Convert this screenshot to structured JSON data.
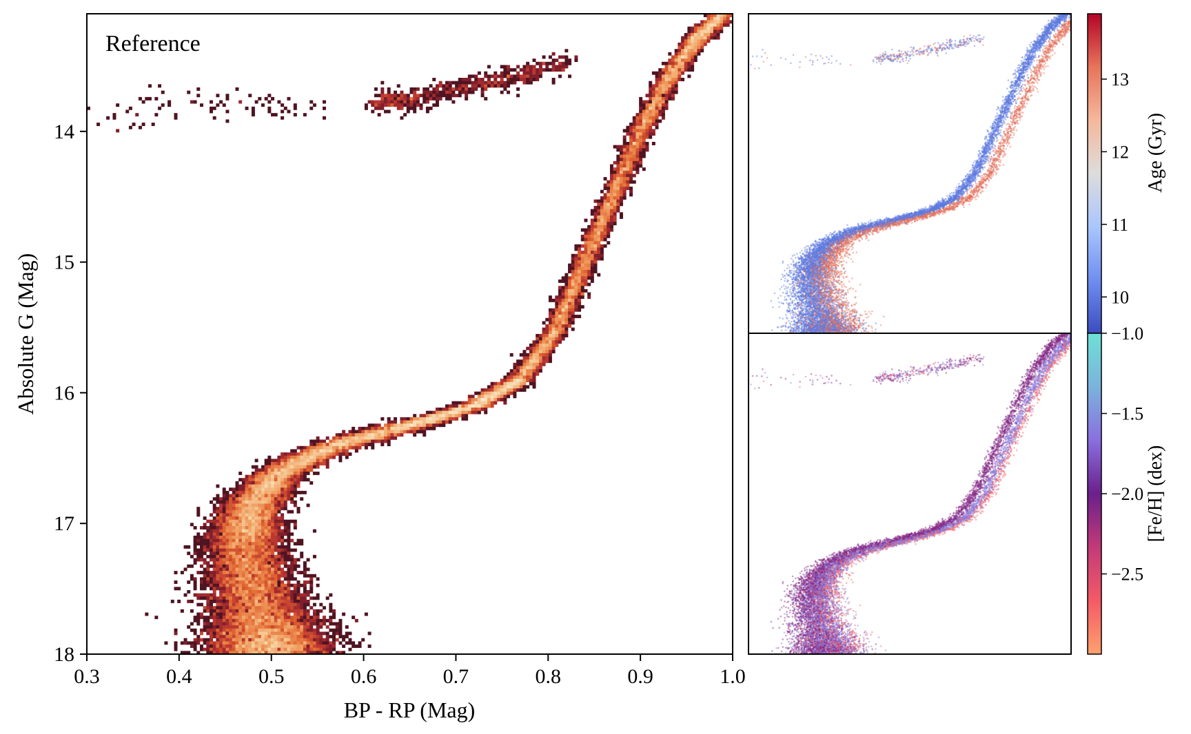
{
  "colors": {
    "cmap_density": [
      "#0d0305",
      "#3b0f1c",
      "#7a1d2a",
      "#b73330",
      "#e0622f",
      "#f1a062",
      "#f6d2a2",
      "#faebd7"
    ],
    "cmap_age": [
      "#3b4cc0",
      "#6f8ff0",
      "#aac6fd",
      "#dddcdc",
      "#f5b89c",
      "#e7745b",
      "#b40426"
    ],
    "cmap_feh": [
      "#fea16e",
      "#f45a66",
      "#c23a78",
      "#6b1f8c",
      "#8a6fe0",
      "#7bb3dc",
      "#6fe0d6"
    ]
  },
  "chart_data": [
    {
      "type": "heatmap",
      "id": "reference",
      "annotation": "Reference",
      "xlabel": "BP - RP (Mag)",
      "ylabel": "Absolute G (Mag)",
      "xlim": [
        0.3,
        1.0
      ],
      "ylim": [
        18.0,
        13.1
      ],
      "y_inverted": true,
      "xticks": [
        "0.3",
        "0.4",
        "0.5",
        "0.6",
        "0.7",
        "0.8",
        "0.9",
        "1.0"
      ],
      "yticks": [
        "14",
        "15",
        "16",
        "17",
        "18"
      ],
      "colormap": "cmap_density",
      "ridge": [
        {
          "x": 0.5,
          "y": 18.0
        },
        {
          "x": 0.48,
          "y": 17.5
        },
        {
          "x": 0.47,
          "y": 17.1
        },
        {
          "x": 0.48,
          "y": 16.85
        },
        {
          "x": 0.51,
          "y": 16.6
        },
        {
          "x": 0.57,
          "y": 16.4
        },
        {
          "x": 0.65,
          "y": 16.25
        },
        {
          "x": 0.72,
          "y": 16.1
        },
        {
          "x": 0.77,
          "y": 15.9
        },
        {
          "x": 0.81,
          "y": 15.5
        },
        {
          "x": 0.84,
          "y": 15.0
        },
        {
          "x": 0.87,
          "y": 14.5
        },
        {
          "x": 0.9,
          "y": 14.0
        },
        {
          "x": 0.93,
          "y": 13.6
        },
        {
          "x": 0.96,
          "y": 13.3
        },
        {
          "x": 0.99,
          "y": 13.1
        }
      ],
      "horizontal_branch": [
        {
          "x": 0.61,
          "y": 13.78
        },
        {
          "x": 0.66,
          "y": 13.75
        },
        {
          "x": 0.72,
          "y": 13.65
        },
        {
          "x": 0.77,
          "y": 13.57
        },
        {
          "x": 0.82,
          "y": 13.45
        }
      ],
      "blue_tail": [
        {
          "x": 0.31,
          "y": 13.95
        },
        {
          "x": 0.38,
          "y": 13.78
        },
        {
          "x": 0.45,
          "y": 13.8
        },
        {
          "x": 0.5,
          "y": 13.82
        },
        {
          "x": 0.55,
          "y": 13.82
        }
      ]
    },
    {
      "type": "scatter",
      "id": "age-panel",
      "colorbar_label": "Age (Gyr)",
      "colorbar_ticks": [
        "10",
        "11",
        "12",
        "13"
      ],
      "colorbar_range": [
        9.5,
        13.9
      ],
      "colormap": "cmap_age",
      "xlim": [
        0.3,
        1.0
      ],
      "ylim": [
        18.0,
        13.1
      ],
      "populations": [
        {
          "label_value": 10.0,
          "offset_x": 0.0
        },
        {
          "label_value": 13.2,
          "offset_x": 0.03
        }
      ]
    },
    {
      "type": "scatter",
      "id": "feh-panel",
      "colorbar_label": "[Fe/H] (dex)",
      "colorbar_ticks": [
        "−1.0",
        "−1.5",
        "−2.0",
        "−2.5"
      ],
      "colorbar_range": [
        -3.0,
        -1.0
      ],
      "colormap": "cmap_feh",
      "xlim": [
        0.3,
        1.0
      ],
      "ylim": [
        18.0,
        13.1
      ],
      "populations": [
        {
          "label_value": -2.1,
          "offset_x": 0.0
        },
        {
          "label_value": -1.6,
          "offset_x": 0.02
        },
        {
          "label_value": -2.7,
          "offset_x": 0.03
        }
      ]
    }
  ]
}
